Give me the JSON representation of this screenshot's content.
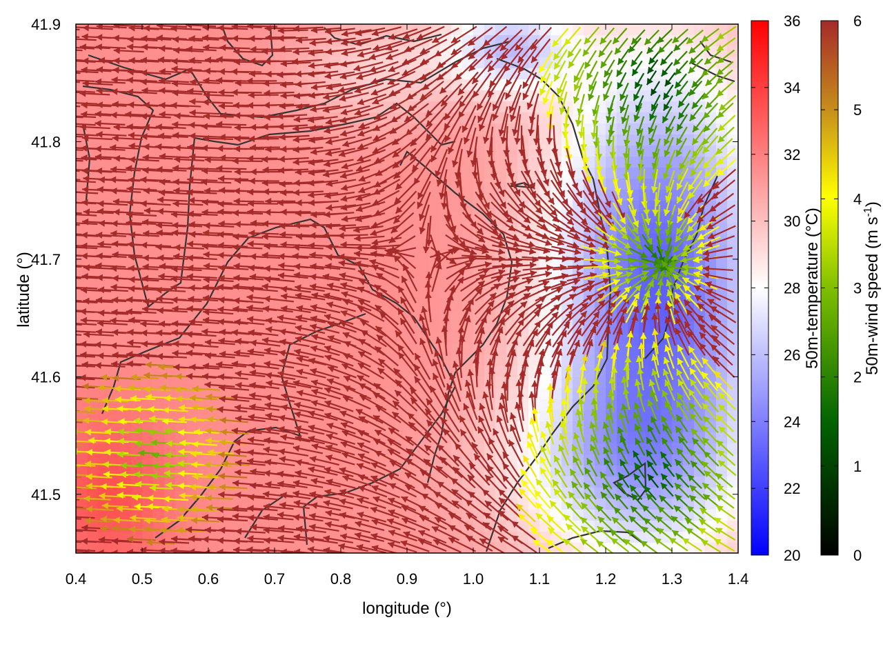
{
  "chart_data": {
    "type": "heatmap",
    "subtype": "vector-field-over-temperature-map",
    "xlabel": "longitude (°)",
    "ylabel": "latitude (°)",
    "xlim": [
      0.4,
      1.4
    ],
    "ylim": [
      41.45,
      41.9
    ],
    "x_ticks": [
      "0.4",
      "0.5",
      "0.6",
      "0.7",
      "0.8",
      "0.9",
      "1.0",
      "1.1",
      "1.2",
      "1.3",
      "1.4"
    ],
    "y_ticks": [
      "41.5",
      "41.6",
      "41.7",
      "41.8",
      "41.9"
    ],
    "temperature_colorbar": {
      "label": "50m-temperature (°C)",
      "range": [
        20,
        36
      ],
      "ticks": [
        "20",
        "22",
        "24",
        "26",
        "28",
        "30",
        "32",
        "34",
        "36"
      ],
      "colors": [
        "#0000ff",
        "#ffffff",
        "#ff0000"
      ]
    },
    "wind_colorbar": {
      "label": "50m-wind speed (m s-1)",
      "label_main": "50m-wind speed (m s",
      "label_sup": "-1",
      "label_end": ")",
      "range": [
        0,
        6
      ],
      "ticks": [
        "0",
        "1",
        "2",
        "3",
        "4",
        "5",
        "6"
      ],
      "colors": [
        "#000000",
        "#006400",
        "#7fbf00",
        "#ffff00",
        "#d4a017",
        "#b8860b",
        "#a52a2a"
      ]
    },
    "grid": false,
    "contour_color": "#333333",
    "vector_default_color": "#a52a2a"
  }
}
